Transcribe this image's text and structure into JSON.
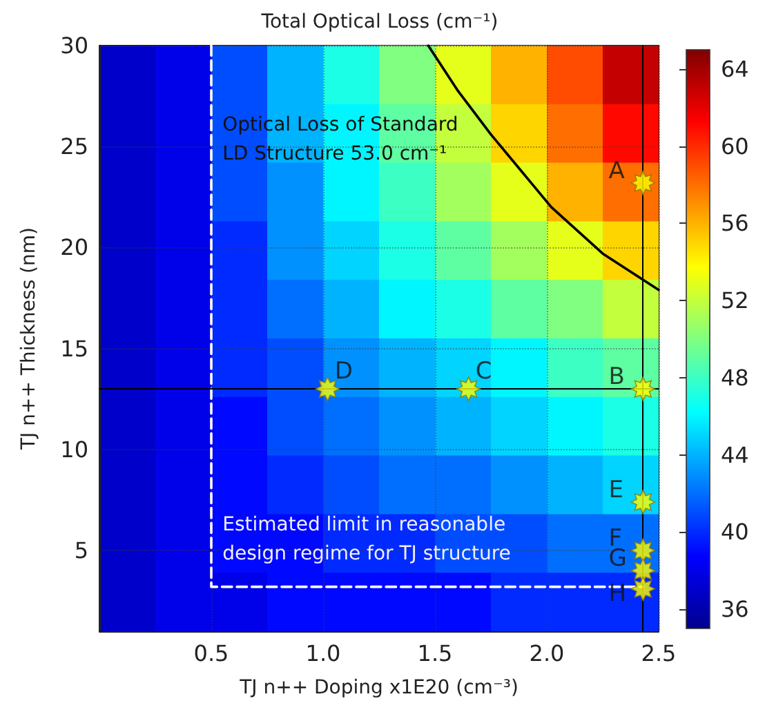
{
  "chart_data": {
    "type": "heatmap",
    "title": "Total Optical Loss (cm⁻¹)",
    "xlabel": "TJ n++ Doping x1E20 (cm⁻³)",
    "ylabel": "TJ n++ Thickness (nm)",
    "x": [
      0.125,
      0.375,
      0.625,
      0.875,
      1.125,
      1.375,
      1.625,
      1.875,
      2.125,
      2.375
    ],
    "y": [
      28.55,
      25.65,
      22.75,
      19.85,
      16.95,
      14.05,
      11.15,
      8.25,
      5.35,
      2.45
    ],
    "cells": [
      [
        37,
        38,
        41,
        44,
        47,
        50,
        53,
        56,
        59,
        63
      ],
      [
        37,
        38,
        41,
        44,
        46,
        49,
        52,
        55,
        58,
        61
      ],
      [
        37,
        38,
        41,
        43,
        46,
        48,
        51,
        53,
        56,
        58
      ],
      [
        37,
        38,
        40,
        43,
        45,
        47,
        49,
        51,
        53,
        55
      ],
      [
        37,
        38,
        40,
        42,
        44,
        46,
        47,
        49,
        50,
        52
      ],
      [
        37,
        38,
        40,
        41,
        43,
        44,
        45,
        46,
        48,
        49
      ],
      [
        37,
        38,
        39,
        41,
        42,
        43,
        44,
        45,
        46,
        47
      ],
      [
        37,
        38,
        39,
        40,
        41,
        42,
        42,
        43,
        44,
        45
      ],
      [
        37,
        38,
        39,
        39,
        40,
        40,
        41,
        41,
        42,
        42
      ],
      [
        37,
        38,
        38,
        39,
        39,
        39,
        39,
        40,
        40,
        40
      ]
    ],
    "clim": [
      35,
      65
    ],
    "cticks": [
      36,
      40,
      44,
      48,
      52,
      56,
      60,
      64
    ],
    "xlim": [
      0,
      2.5
    ],
    "xticks": [
      0.5,
      {
        "value": 1,
        "label": "1.0"
      },
      1.5,
      {
        "value": 2,
        "label": "2.0"
      },
      2.5
    ],
    "ylim": [
      1,
      30
    ],
    "yticks": [
      5,
      10,
      15,
      20,
      25,
      30
    ],
    "grid": true,
    "series": [
      {
        "type": "line",
        "color": "#000000",
        "line_style": "solid",
        "marker": "none",
        "x": [
          1.47,
          1.6,
          1.75,
          2.02,
          2.25,
          2.5
        ],
        "values": [
          30,
          27.8,
          25.6,
          22,
          19.7,
          17.9
        ]
      },
      {
        "type": "line",
        "color": "#ffffff",
        "line_style": "dashed",
        "marker": "none",
        "x": [
          0.5,
          0.5,
          2.43
        ],
        "values": [
          30,
          3.2,
          3.2
        ]
      },
      {
        "type": "scatter",
        "color": "#ffff00",
        "marker": "star",
        "x": [
          2.43,
          2.43,
          1.65,
          1.02,
          2.43,
          2.43,
          2.43,
          2.43
        ],
        "values": [
          23.2,
          13,
          13,
          13,
          7.4,
          5,
          4,
          3.1
        ],
        "value_labels": [
          "A",
          "B",
          "C",
          "D",
          "E",
          "F",
          "G",
          "H"
        ]
      }
    ],
    "ref_lines": [
      {
        "axis": "y",
        "value": 13,
        "color": "#000000"
      },
      {
        "axis": "x",
        "value": 2.43,
        "color": "#000000"
      }
    ],
    "annotations": [
      "Optical Loss of Standard LD Structure 53.0 cm⁻¹",
      "Estimated limit in reasonable design regime for TJ structure"
    ]
  }
}
